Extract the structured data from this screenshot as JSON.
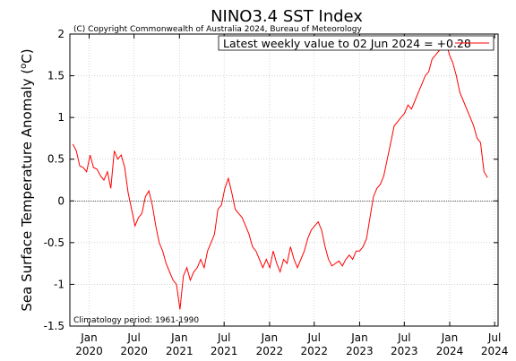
{
  "chart_data": {
    "type": "line",
    "title": "NINO3.4 SST Index",
    "copyright": "(C) Copyright Commonwealth of Australia 2024, Bureau of Meteorology",
    "legend": "Latest weekly value to 02 Jun 2024 = +0.28",
    "climatology": "Climatology period: 1961-1990",
    "xlabel": "",
    "ylabel_main": "Sea Surface Temperature Anomaly (",
    "ylabel_sup": "o",
    "ylabel_unit": "C)",
    "ylim": [
      -1.5,
      2
    ],
    "xlim": [
      "2019-10-15",
      "2024-07-15"
    ],
    "y_ticks": [
      "2",
      "1.5",
      "1",
      "0.5",
      "0",
      "-0.5",
      "-1",
      "-1.5"
    ],
    "x_ticks": [
      {
        "month": "Jan",
        "year": "2020",
        "date": "2020-01-01"
      },
      {
        "month": "Jul",
        "year": "2020",
        "date": "2020-07-01"
      },
      {
        "month": "Jan",
        "year": "2021",
        "date": "2021-01-01"
      },
      {
        "month": "Jul",
        "year": "2021",
        "date": "2021-07-01"
      },
      {
        "month": "Jan",
        "year": "2022",
        "date": "2022-01-01"
      },
      {
        "month": "Jul",
        "year": "2022",
        "date": "2022-07-01"
      },
      {
        "month": "Jan",
        "year": "2023",
        "date": "2023-01-01"
      },
      {
        "month": "Jul",
        "year": "2023",
        "date": "2023-07-01"
      },
      {
        "month": "Jan",
        "year": "2024",
        "date": "2024-01-01"
      },
      {
        "month": "Jul",
        "year": "2024",
        "date": "2024-07-01"
      }
    ],
    "series": [
      {
        "color": "#ff0000",
        "x": [
          "2019-10-27",
          "2019-11-10",
          "2019-11-24",
          "2019-12-08",
          "2019-12-22",
          "2020-01-05",
          "2020-01-19",
          "2020-02-02",
          "2020-02-16",
          "2020-03-01",
          "2020-03-15",
          "2020-03-29",
          "2020-04-12",
          "2020-04-26",
          "2020-05-10",
          "2020-05-24",
          "2020-06-07",
          "2020-06-21",
          "2020-07-05",
          "2020-07-19",
          "2020-08-02",
          "2020-08-16",
          "2020-08-30",
          "2020-09-13",
          "2020-09-27",
          "2020-10-11",
          "2020-10-25",
          "2020-11-08",
          "2020-11-22",
          "2020-12-06",
          "2020-12-20",
          "2021-01-03",
          "2021-01-17",
          "2021-01-31",
          "2021-02-14",
          "2021-02-28",
          "2021-03-14",
          "2021-03-28",
          "2021-04-11",
          "2021-04-25",
          "2021-05-09",
          "2021-05-23",
          "2021-06-06",
          "2021-06-20",
          "2021-07-04",
          "2021-07-18",
          "2021-08-01",
          "2021-08-15",
          "2021-08-29",
          "2021-09-12",
          "2021-09-26",
          "2021-10-10",
          "2021-10-24",
          "2021-11-07",
          "2021-11-21",
          "2021-12-05",
          "2021-12-19",
          "2022-01-02",
          "2022-01-16",
          "2022-01-30",
          "2022-02-13",
          "2022-02-27",
          "2022-03-13",
          "2022-03-27",
          "2022-04-10",
          "2022-04-24",
          "2022-05-08",
          "2022-05-22",
          "2022-06-05",
          "2022-06-19",
          "2022-07-03",
          "2022-07-17",
          "2022-07-31",
          "2022-08-14",
          "2022-08-28",
          "2022-09-11",
          "2022-09-25",
          "2022-10-09",
          "2022-10-23",
          "2022-11-06",
          "2022-11-20",
          "2022-12-04",
          "2022-12-18",
          "2023-01-01",
          "2023-01-15",
          "2023-01-29",
          "2023-02-12",
          "2023-02-26",
          "2023-03-12",
          "2023-03-26",
          "2023-04-09",
          "2023-04-23",
          "2023-05-07",
          "2023-05-21",
          "2023-06-04",
          "2023-06-18",
          "2023-07-02",
          "2023-07-16",
          "2023-07-30",
          "2023-08-13",
          "2023-08-27",
          "2023-09-10",
          "2023-09-24",
          "2023-10-08",
          "2023-10-22",
          "2023-11-05",
          "2023-11-19",
          "2023-12-03",
          "2023-12-17",
          "2023-12-31",
          "2024-01-14",
          "2024-01-28",
          "2024-02-11",
          "2024-02-25",
          "2024-03-10",
          "2024-03-24",
          "2024-04-07",
          "2024-04-21",
          "2024-05-05",
          "2024-05-19",
          "2024-06-02"
        ],
        "y": [
          0.68,
          0.6,
          0.42,
          0.4,
          0.35,
          0.55,
          0.4,
          0.38,
          0.3,
          0.25,
          0.35,
          0.15,
          0.6,
          0.5,
          0.55,
          0.4,
          0.1,
          -0.1,
          -0.3,
          -0.2,
          -0.15,
          0.05,
          0.12,
          -0.05,
          -0.3,
          -0.5,
          -0.6,
          -0.75,
          -0.85,
          -0.95,
          -1.0,
          -1.3,
          -0.9,
          -0.8,
          -0.95,
          -0.85,
          -0.8,
          -0.7,
          -0.8,
          -0.6,
          -0.5,
          -0.4,
          -0.1,
          -0.05,
          0.15,
          0.27,
          0.1,
          -0.1,
          -0.15,
          -0.2,
          -0.3,
          -0.4,
          -0.55,
          -0.6,
          -0.7,
          -0.8,
          -0.7,
          -0.8,
          -0.6,
          -0.75,
          -0.85,
          -0.7,
          -0.75,
          -0.55,
          -0.7,
          -0.8,
          -0.7,
          -0.6,
          -0.45,
          -0.35,
          -0.3,
          -0.25,
          -0.35,
          -0.55,
          -0.7,
          -0.78,
          -0.75,
          -0.72,
          -0.78,
          -0.7,
          -0.65,
          -0.7,
          -0.6,
          -0.6,
          -0.55,
          -0.45,
          -0.2,
          0.05,
          0.15,
          0.2,
          0.3,
          0.5,
          0.7,
          0.9,
          0.95,
          1.0,
          1.05,
          1.15,
          1.1,
          1.2,
          1.3,
          1.4,
          1.5,
          1.55,
          1.7,
          1.75,
          1.8,
          1.95,
          1.9,
          1.75,
          1.65,
          1.5,
          1.3,
          1.2,
          1.1,
          1.0,
          0.9,
          0.75,
          0.7,
          0.35,
          0.28
        ]
      }
    ]
  }
}
